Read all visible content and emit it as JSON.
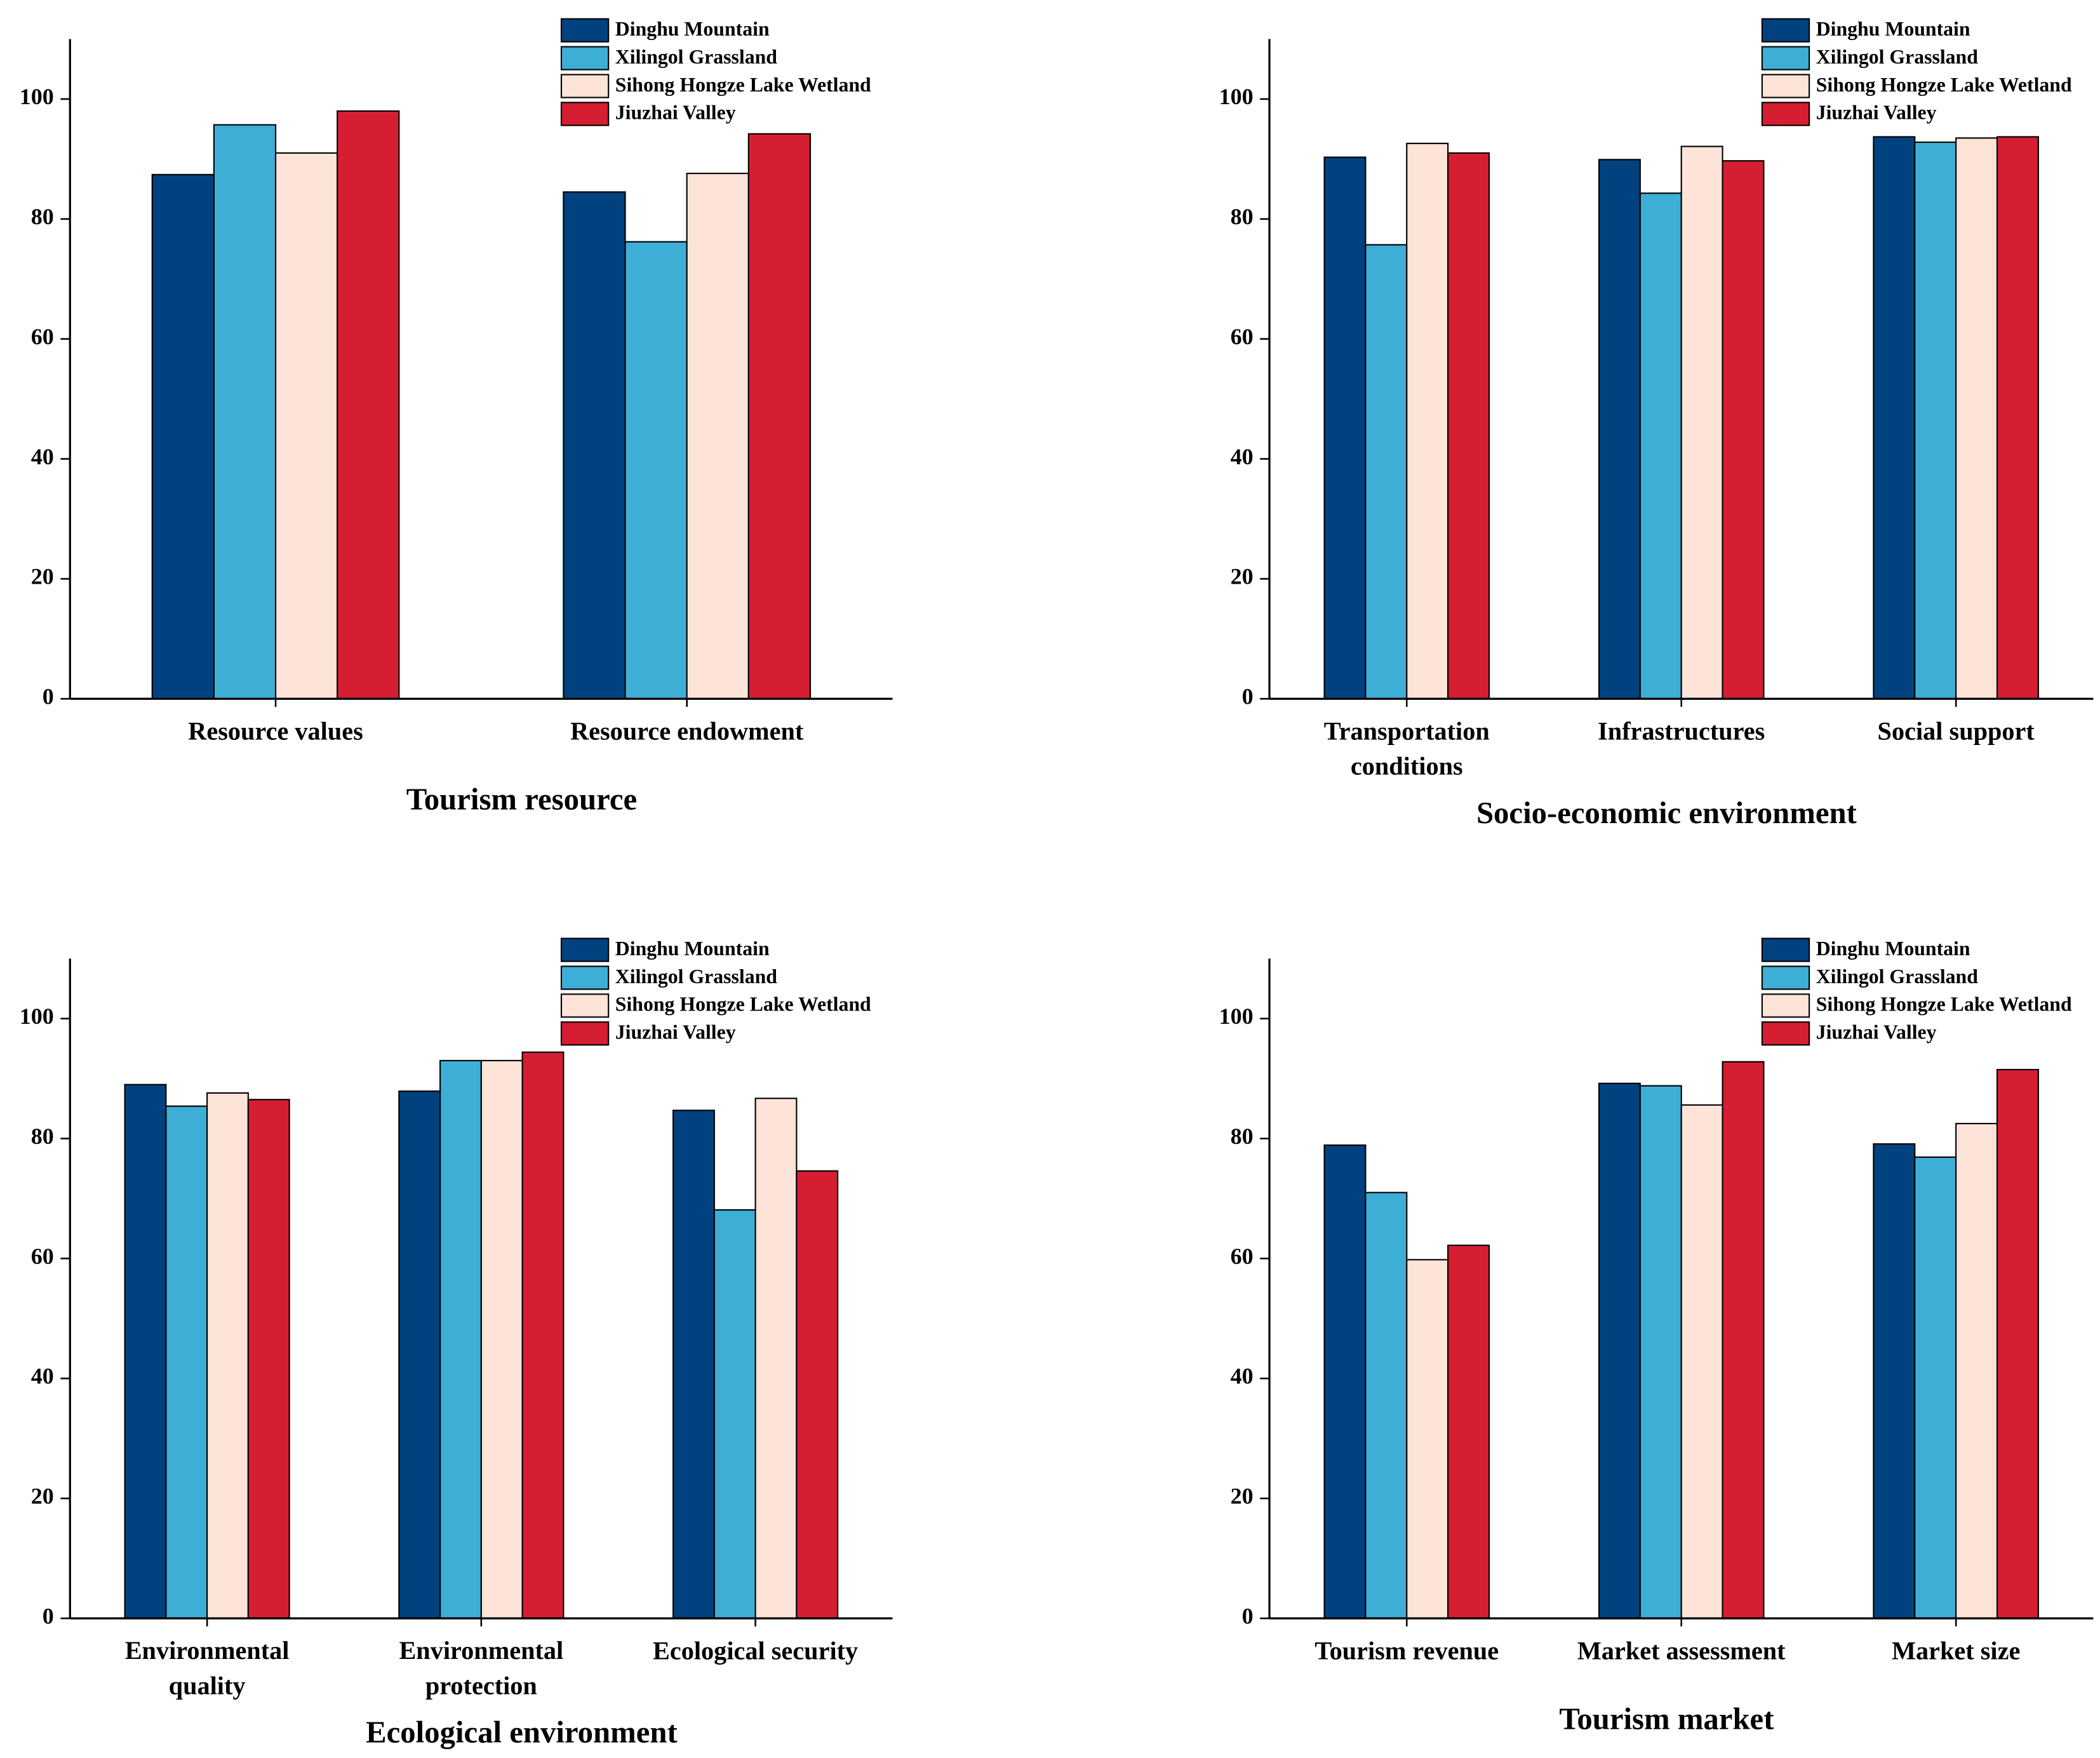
{
  "chart_data": [
    {
      "type": "bar",
      "title": "Tourism resource",
      "categories": [
        "Resource values",
        "Resource endowment"
      ],
      "series": [
        {
          "name": "Dinghu Mountain",
          "color": "#00427f",
          "values": [
            87.4,
            84.5
          ]
        },
        {
          "name": "Xilingol Grassland",
          "color": "#3daed6",
          "values": [
            95.7,
            76.2
          ]
        },
        {
          "name": "Sihong Hongze Lake Wetland",
          "color": "#fde3d8",
          "values": [
            91.0,
            87.6
          ]
        },
        {
          "name": "Jiuzhai Valley",
          "color": "#d51e31",
          "values": [
            98.0,
            94.2
          ]
        }
      ],
      "ylim": [
        0,
        110
      ],
      "yticks": [
        0,
        20,
        40,
        60,
        80,
        100
      ],
      "legend": "upper right"
    },
    {
      "type": "bar",
      "title": "Socio-economic environment",
      "categories": [
        "Transportation conditions",
        "Infrastructures",
        "Social support"
      ],
      "series": [
        {
          "name": "Dinghu Mountain",
          "color": "#00427f",
          "values": [
            90.3,
            89.9,
            93.7
          ]
        },
        {
          "name": "Xilingol Grassland",
          "color": "#3daed6",
          "values": [
            75.7,
            84.3,
            92.8
          ]
        },
        {
          "name": "Sihong Hongze Lake Wetland",
          "color": "#fde3d8",
          "values": [
            92.6,
            92.1,
            93.5
          ]
        },
        {
          "name": "Jiuzhai Valley",
          "color": "#d51e31",
          "values": [
            91.0,
            89.7,
            93.7
          ]
        }
      ],
      "ylim": [
        0,
        110
      ],
      "yticks": [
        0,
        20,
        40,
        60,
        80,
        100
      ],
      "legend": "upper right"
    },
    {
      "type": "bar",
      "title": "Ecological environment",
      "categories": [
        "Environmental quality",
        "Environmental protection",
        "Ecological security"
      ],
      "series": [
        {
          "name": "Dinghu Mountain",
          "color": "#00427f",
          "values": [
            89.0,
            87.9,
            84.7
          ]
        },
        {
          "name": "Xilingol Grassland",
          "color": "#3daed6",
          "values": [
            85.4,
            93.0,
            68.1
          ]
        },
        {
          "name": "Sihong Hongze Lake Wetland",
          "color": "#fde3d8",
          "values": [
            87.6,
            93.0,
            86.7
          ]
        },
        {
          "name": "Jiuzhai Valley",
          "color": "#d51e31",
          "values": [
            86.5,
            94.4,
            74.6
          ]
        }
      ],
      "ylim": [
        0,
        110
      ],
      "yticks": [
        0,
        20,
        40,
        60,
        80,
        100
      ],
      "legend": "upper right"
    },
    {
      "type": "bar",
      "title": "Tourism market",
      "categories": [
        "Tourism revenue",
        "Market assessment",
        "Market size"
      ],
      "series": [
        {
          "name": "Dinghu Mountain",
          "color": "#00427f",
          "values": [
            78.9,
            89.2,
            79.1
          ]
        },
        {
          "name": "Xilingol Grassland",
          "color": "#3daed6",
          "values": [
            71.0,
            88.8,
            76.9
          ]
        },
        {
          "name": "Sihong Hongze Lake Wetland",
          "color": "#fde3d8",
          "values": [
            59.8,
            85.6,
            82.5
          ]
        },
        {
          "name": "Jiuzhai Valley",
          "color": "#d51e31",
          "values": [
            62.2,
            92.8,
            91.5
          ]
        }
      ],
      "ylim": [
        0,
        110
      ],
      "yticks": [
        0,
        20,
        40,
        60,
        80,
        100
      ],
      "legend": "upper right"
    }
  ]
}
